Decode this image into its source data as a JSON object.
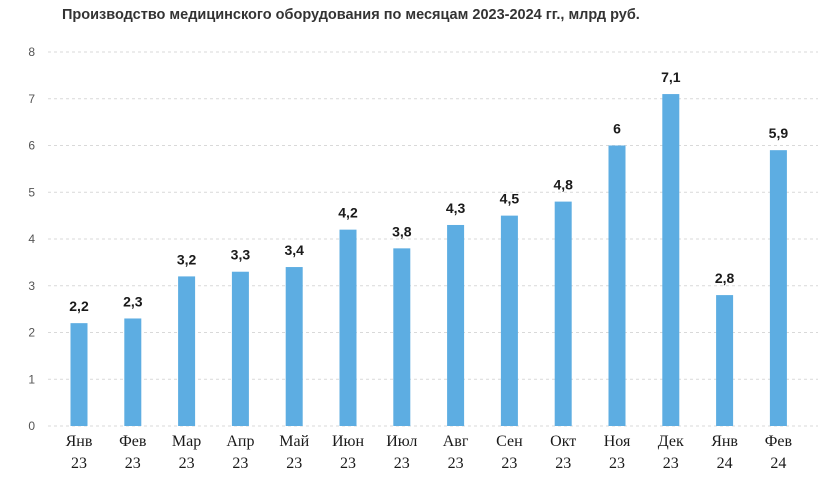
{
  "chart_data": {
    "type": "bar",
    "title": "Производство медицинского оборудования по месяцам 2023-2024 гг., млрд руб.",
    "xlabel": "",
    "ylabel": "",
    "categories": [
      [
        "Янв",
        "23"
      ],
      [
        "Фев",
        "23"
      ],
      [
        "Мар",
        "23"
      ],
      [
        "Апр",
        "23"
      ],
      [
        "Май",
        "23"
      ],
      [
        "Июн",
        "23"
      ],
      [
        "Июл",
        "23"
      ],
      [
        "Авг",
        "23"
      ],
      [
        "Сен",
        "23"
      ],
      [
        "Окт",
        "23"
      ],
      [
        "Ноя",
        "23"
      ],
      [
        "Дек",
        "23"
      ],
      [
        "Янв",
        "24"
      ],
      [
        "Фев",
        "24"
      ]
    ],
    "values": [
      2.2,
      2.3,
      3.2,
      3.3,
      3.4,
      4.2,
      3.8,
      4.3,
      4.5,
      4.8,
      6,
      7.1,
      2.8,
      5.9
    ],
    "data_labels": [
      "2,2",
      "2,3",
      "3,2",
      "3,3",
      "3,4",
      "4,2",
      "3,8",
      "4,3",
      "4,5",
      "4,8",
      "6",
      "7,1",
      "2,8",
      "5,9"
    ],
    "ylim": [
      0,
      8
    ],
    "yticks": [
      "0",
      "1",
      "2",
      "3",
      "4",
      "5",
      "6",
      "7",
      "8"
    ],
    "grid": true,
    "legend": "none",
    "bar_color": "#5dade2"
  }
}
